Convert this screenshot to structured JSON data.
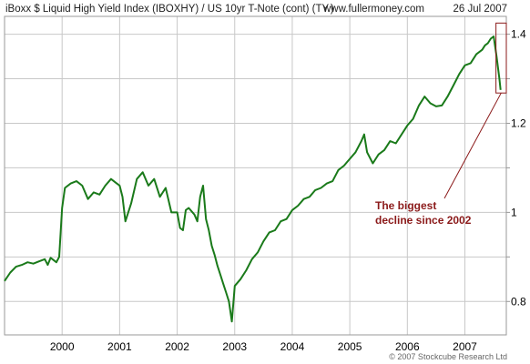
{
  "chart_data": {
    "type": "line",
    "title": "iBoxx $ Liquid High Yield Index (IBOXHY) / US 10yr T-Note (cont) (TY.)",
    "source_site": "www.fullermoney.com",
    "date": "26 Jul 2007",
    "copyright": "© 2007 Stockcube Research Ltd",
    "x_tick_labels": [
      "2000",
      "2001",
      "2002",
      "2003",
      "2004",
      "2005",
      "2006",
      "2007"
    ],
    "y_tick_labels": [
      "1.4",
      "1.2",
      "1",
      "0.8"
    ],
    "y_ticks": [
      1.4,
      1.2,
      1.0,
      0.8
    ],
    "xlim": [
      1999.0,
      2007.72
    ],
    "ylim": [
      0.725,
      1.44
    ],
    "grid": true,
    "annotation": {
      "lines": [
        "The biggest",
        "decline since 2002"
      ],
      "box": {
        "x": [
          2007.54,
          2007.72
        ],
        "y": [
          1.268,
          1.425
        ]
      }
    },
    "colors": {
      "line": "#1a7a1a",
      "grid": "#c8c8c8",
      "annotation": "#8b1a1a"
    },
    "series": [
      {
        "x": [
          1999.0,
          1999.1,
          1999.2,
          1999.3,
          1999.4,
          1999.5,
          1999.6,
          1999.7,
          1999.75,
          1999.8,
          1999.9,
          1999.95,
          2000.0,
          2000.05,
          2000.15,
          2000.25,
          2000.35,
          2000.45,
          2000.55,
          2000.65,
          2000.75,
          2000.85,
          2000.95,
          2001.0,
          2001.05,
          2001.1,
          2001.2,
          2001.3,
          2001.4,
          2001.5,
          2001.6,
          2001.7,
          2001.8,
          2001.9,
          2002.0,
          2002.05,
          2002.1,
          2002.15,
          2002.2,
          2002.3,
          2002.35,
          2002.4,
          2002.45,
          2002.5,
          2002.55,
          2002.6,
          2002.65,
          2002.7,
          2002.75,
          2002.8,
          2002.85,
          2002.9,
          2002.95,
          2003.0,
          2003.1,
          2003.2,
          2003.3,
          2003.4,
          2003.5,
          2003.6,
          2003.7,
          2003.8,
          2003.9,
          2004.0,
          2004.1,
          2004.2,
          2004.3,
          2004.4,
          2004.5,
          2004.6,
          2004.7,
          2004.8,
          2004.9,
          2005.0,
          2005.1,
          2005.2,
          2005.25,
          2005.3,
          2005.4,
          2005.5,
          2005.6,
          2005.7,
          2005.8,
          2005.9,
          2006.0,
          2006.1,
          2006.2,
          2006.3,
          2006.4,
          2006.5,
          2006.6,
          2006.7,
          2006.8,
          2006.9,
          2007.0,
          2007.1,
          2007.2,
          2007.3,
          2007.35,
          2007.4,
          2007.45,
          2007.5,
          2007.55,
          2007.6,
          2007.62
        ],
        "values": [
          0.846,
          0.865,
          0.878,
          0.882,
          0.888,
          0.885,
          0.89,
          0.895,
          0.882,
          0.898,
          0.888,
          0.9,
          1.01,
          1.055,
          1.065,
          1.07,
          1.06,
          1.03,
          1.045,
          1.04,
          1.06,
          1.075,
          1.065,
          1.06,
          1.035,
          0.98,
          1.02,
          1.075,
          1.09,
          1.06,
          1.075,
          1.035,
          1.055,
          1.0,
          1.0,
          0.965,
          0.96,
          1.005,
          1.01,
          0.995,
          0.98,
          1.035,
          1.06,
          0.985,
          0.96,
          0.925,
          0.905,
          0.88,
          0.86,
          0.84,
          0.82,
          0.8,
          0.755,
          0.835,
          0.85,
          0.87,
          0.895,
          0.91,
          0.935,
          0.955,
          0.96,
          0.98,
          0.985,
          1.005,
          1.015,
          1.03,
          1.035,
          1.05,
          1.055,
          1.065,
          1.07,
          1.095,
          1.105,
          1.12,
          1.135,
          1.16,
          1.175,
          1.135,
          1.11,
          1.13,
          1.14,
          1.16,
          1.155,
          1.175,
          1.195,
          1.21,
          1.24,
          1.26,
          1.245,
          1.238,
          1.24,
          1.26,
          1.285,
          1.31,
          1.33,
          1.335,
          1.355,
          1.365,
          1.375,
          1.38,
          1.39,
          1.395,
          1.35,
          1.3,
          1.275
        ]
      }
    ]
  }
}
